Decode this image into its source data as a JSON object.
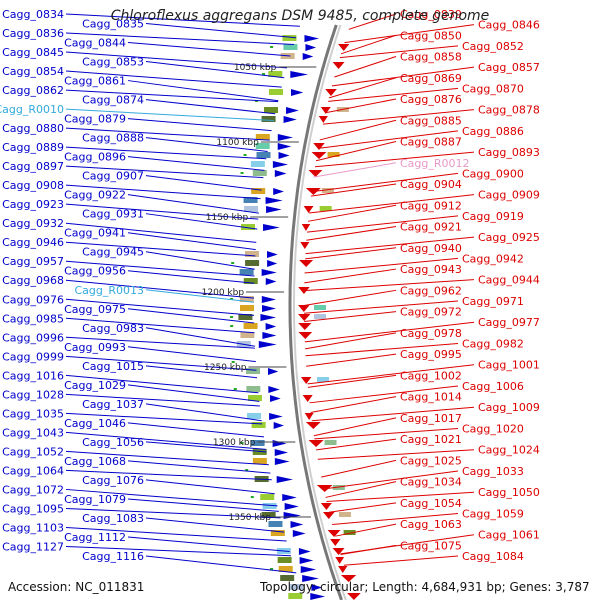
{
  "title": "Chloroflexus aggregans DSM 9485, complete genome",
  "accession": "Accession: NC_011831",
  "topology": "Topology: circular; Length: 4,684,931 bp; Genes: 3,787",
  "colors": {
    "forward": "#0000cc",
    "reverse": "#dd0000",
    "rna_forward": "#33aadd",
    "rna_reverse": "#e899c8"
  },
  "kbp_markers": [
    "1050 kbp",
    "1100 kbp",
    "1150 kbp",
    "1200 kbp",
    "1250 kbp",
    "1300 kbp",
    "1350 kbp"
  ],
  "left_genes": [
    "Cagg_0834",
    "Cagg_0835",
    "Cagg_0836",
    "Cagg_0844",
    "Cagg_0845",
    "Cagg_0853",
    "Cagg_0854",
    "Cagg_0861",
    "Cagg_0862",
    "Cagg_0874",
    "Cagg_R0010",
    "Cagg_0879",
    "Cagg_0880",
    "Cagg_0888",
    "Cagg_0889",
    "Cagg_0896",
    "Cagg_0897",
    "Cagg_0907",
    "Cagg_0908",
    "Cagg_0922",
    "Cagg_0923",
    "Cagg_0931",
    "Cagg_0932",
    "Cagg_0941",
    "Cagg_0946",
    "Cagg_0945",
    "Cagg_0957",
    "Cagg_0956",
    "Cagg_0968",
    "Cagg_R0013",
    "Cagg_0976",
    "Cagg_0975",
    "Cagg_0985",
    "Cagg_0983",
    "Cagg_0996",
    "Cagg_0993",
    "Cagg_0999",
    "Cagg_1015",
    "Cagg_1016",
    "Cagg_1029",
    "Cagg_1028",
    "Cagg_1037",
    "Cagg_1035",
    "Cagg_1046",
    "Cagg_1043",
    "Cagg_1056",
    "Cagg_1052",
    "Cagg_1068",
    "Cagg_1064",
    "Cagg_1076",
    "Cagg_1072",
    "Cagg_1079",
    "Cagg_1095",
    "Cagg_1083",
    "Cagg_1103",
    "Cagg_1112",
    "Cagg_1127",
    "Cagg_1116"
  ],
  "right_genes": [
    "Cagg_0839",
    "Cagg_0846",
    "Cagg_0850",
    "Cagg_0852",
    "Cagg_0858",
    "Cagg_0857",
    "Cagg_0869",
    "Cagg_0870",
    "Cagg_0876",
    "Cagg_0878",
    "Cagg_0885",
    "Cagg_0886",
    "Cagg_0887",
    "Cagg_0893",
    "Cagg_R0012",
    "Cagg_0900",
    "Cagg_0904",
    "Cagg_0909",
    "Cagg_0912",
    "Cagg_0919",
    "Cagg_0921",
    "Cagg_0925",
    "Cagg_0940",
    "Cagg_0942",
    "Cagg_0943",
    "Cagg_0944",
    "Cagg_0962",
    "Cagg_0971",
    "Cagg_0972",
    "Cagg_0977",
    "Cagg_0978",
    "Cagg_0982",
    "Cagg_0995",
    "Cagg_1001",
    "Cagg_1002",
    "Cagg_1006",
    "Cagg_1014",
    "Cagg_1009",
    "Cagg_1017",
    "Cagg_1020",
    "Cagg_1021",
    "Cagg_1024",
    "Cagg_1025",
    "Cagg_1033",
    "Cagg_1034",
    "Cagg_1050",
    "Cagg_1054",
    "Cagg_1059",
    "Cagg_1063",
    "Cagg_1061",
    "Cagg_1075",
    "Cagg_1084"
  ]
}
